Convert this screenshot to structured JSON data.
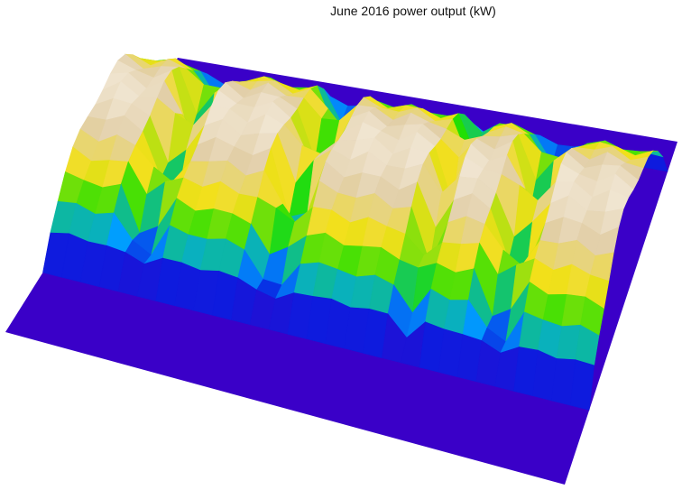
{
  "chart_data": {
    "type": "surface",
    "title": "June 2016 power output (kW)",
    "xlabel": "",
    "ylabel": "",
    "zlabel": "",
    "axes_visible": false,
    "grid": false,
    "legend": "none",
    "days": 30,
    "hours": [
      0,
      1,
      2,
      3,
      4,
      5,
      6,
      7,
      8,
      9,
      10,
      11,
      12,
      13,
      14,
      15,
      16,
      17,
      18,
      19,
      20,
      21,
      22,
      23
    ],
    "daylight_hours": [
      5,
      21
    ],
    "peak_normalized": 1.0,
    "low_output_days": [
      4,
      5,
      11,
      12,
      19,
      23,
      24
    ],
    "colormap": [
      "#3a00c8",
      "#0a1ee0",
      "#00a0ff",
      "#23e000",
      "#f2e01a",
      "#e2cfa8",
      "#f6eee2"
    ],
    "background": "#ffffff"
  }
}
